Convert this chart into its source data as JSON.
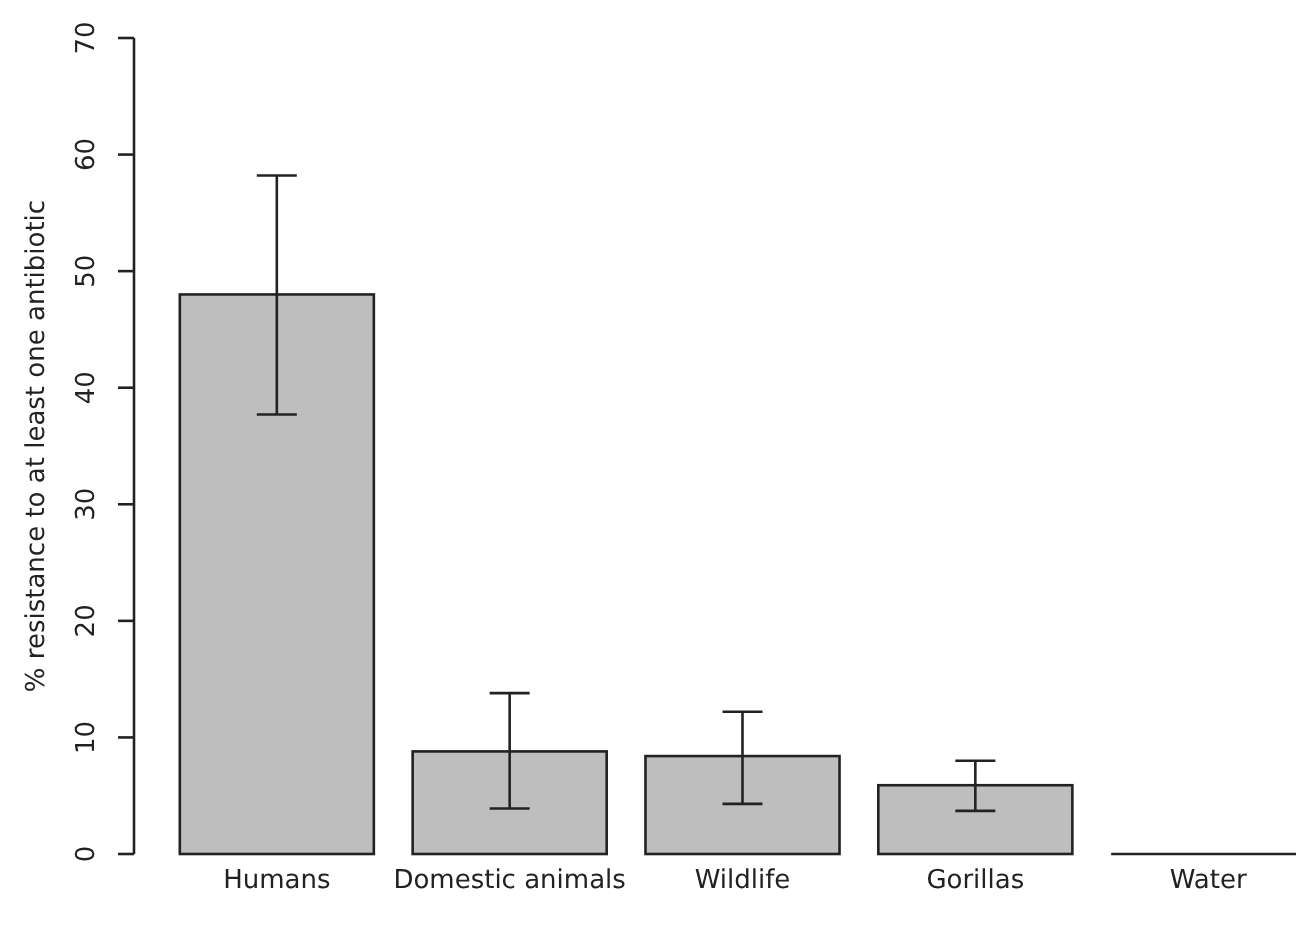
{
  "chart_data": {
    "type": "bar",
    "ylabel": "% resistance to at least one antibiotic",
    "categories": [
      "Humans",
      "Domestic animals",
      "Wildlife",
      "Gorillas",
      "Water"
    ],
    "values": [
      48.0,
      8.8,
      8.4,
      5.9,
      0
    ],
    "errors": [
      [
        37.7,
        58.2
      ],
      [
        3.9,
        13.8
      ],
      [
        4.3,
        12.2
      ],
      [
        3.7,
        8.0
      ],
      null
    ],
    "color": "#bebebe",
    "ylim": [
      0,
      70
    ],
    "yticks": [
      0,
      10,
      20,
      30,
      40,
      50,
      60,
      70
    ],
    "grid": false
  }
}
